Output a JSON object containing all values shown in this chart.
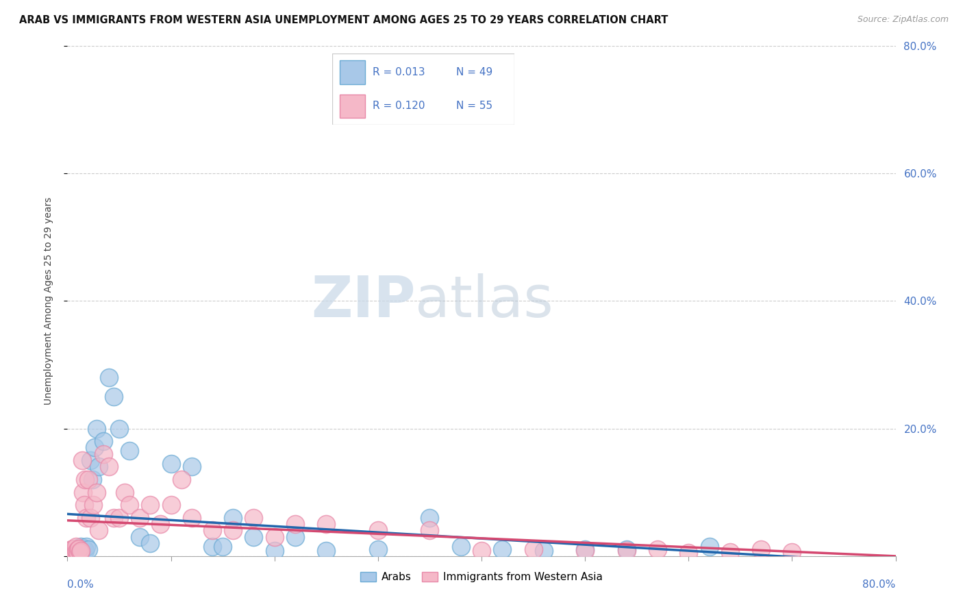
{
  "title": "ARAB VS IMMIGRANTS FROM WESTERN ASIA UNEMPLOYMENT AMONG AGES 25 TO 29 YEARS CORRELATION CHART",
  "source": "Source: ZipAtlas.com",
  "ylabel": "Unemployment Among Ages 25 to 29 years",
  "xlim": [
    0.0,
    0.8
  ],
  "ylim": [
    0.0,
    0.8
  ],
  "ytick_values": [
    0.0,
    0.2,
    0.4,
    0.6,
    0.8
  ],
  "ytick_labels": [
    "",
    "20.0%",
    "40.0%",
    "60.0%",
    "80.0%"
  ],
  "legend_arab_R": "R = 0.013",
  "legend_arab_N": "N = 49",
  "legend_immig_R": "R = 0.120",
  "legend_immig_N": "N = 55",
  "arab_color": "#a8c8e8",
  "arab_edge_color": "#6aaad4",
  "immig_color": "#f5b8c8",
  "immig_edge_color": "#e888a8",
  "arab_line_color": "#2166ac",
  "immig_line_color": "#d44870",
  "watermark_zip": "ZIP",
  "watermark_atlas": "atlas",
  "arab_x": [
    0.002,
    0.003,
    0.004,
    0.005,
    0.006,
    0.007,
    0.008,
    0.008,
    0.009,
    0.01,
    0.01,
    0.011,
    0.012,
    0.013,
    0.014,
    0.015,
    0.016,
    0.017,
    0.018,
    0.02,
    0.022,
    0.024,
    0.026,
    0.028,
    0.03,
    0.035,
    0.04,
    0.045,
    0.05,
    0.06,
    0.07,
    0.08,
    0.1,
    0.12,
    0.14,
    0.15,
    0.16,
    0.18,
    0.2,
    0.22,
    0.25,
    0.3,
    0.35,
    0.38,
    0.42,
    0.46,
    0.5,
    0.54,
    0.62
  ],
  "arab_y": [
    0.005,
    0.008,
    0.003,
    0.01,
    0.005,
    0.008,
    0.012,
    0.005,
    0.007,
    0.01,
    0.007,
    0.012,
    0.008,
    0.015,
    0.006,
    0.01,
    0.012,
    0.008,
    0.015,
    0.01,
    0.15,
    0.12,
    0.17,
    0.2,
    0.14,
    0.18,
    0.28,
    0.25,
    0.2,
    0.165,
    0.03,
    0.02,
    0.145,
    0.14,
    0.015,
    0.015,
    0.06,
    0.03,
    0.008,
    0.03,
    0.008,
    0.01,
    0.06,
    0.015,
    0.01,
    0.008,
    0.01,
    0.01,
    0.015
  ],
  "immig_x": [
    0.001,
    0.002,
    0.003,
    0.004,
    0.005,
    0.006,
    0.006,
    0.007,
    0.008,
    0.008,
    0.009,
    0.01,
    0.01,
    0.011,
    0.012,
    0.013,
    0.014,
    0.015,
    0.016,
    0.017,
    0.018,
    0.02,
    0.022,
    0.025,
    0.028,
    0.03,
    0.035,
    0.04,
    0.045,
    0.05,
    0.055,
    0.06,
    0.07,
    0.08,
    0.09,
    0.1,
    0.11,
    0.12,
    0.14,
    0.16,
    0.18,
    0.2,
    0.22,
    0.25,
    0.3,
    0.35,
    0.4,
    0.45,
    0.5,
    0.54,
    0.57,
    0.6,
    0.64,
    0.67,
    0.7
  ],
  "immig_y": [
    0.005,
    0.008,
    0.004,
    0.01,
    0.006,
    0.003,
    0.012,
    0.005,
    0.008,
    0.015,
    0.007,
    0.01,
    0.005,
    0.012,
    0.006,
    0.008,
    0.15,
    0.1,
    0.08,
    0.12,
    0.06,
    0.12,
    0.06,
    0.08,
    0.1,
    0.04,
    0.16,
    0.14,
    0.06,
    0.06,
    0.1,
    0.08,
    0.06,
    0.08,
    0.05,
    0.08,
    0.12,
    0.06,
    0.04,
    0.04,
    0.06,
    0.03,
    0.05,
    0.05,
    0.04,
    0.04,
    0.008,
    0.01,
    0.008,
    0.008,
    0.01,
    0.005,
    0.006,
    0.01,
    0.006
  ]
}
